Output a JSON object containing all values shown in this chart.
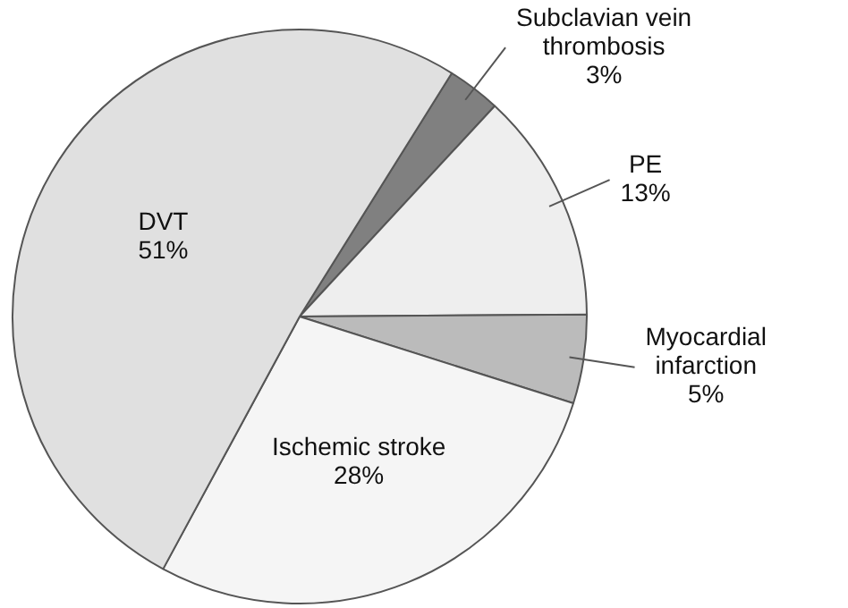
{
  "chart_data": {
    "type": "pie",
    "categories": [
      "Subclavian vein thrombosis",
      "PE",
      "Myocardial infarction",
      "Ischemic stroke",
      "DVT"
    ],
    "values": [
      3,
      13,
      5,
      28,
      51
    ],
    "value_labels": [
      "3%",
      "13%",
      "5%",
      "28%",
      "51%"
    ],
    "colors": [
      "#808080",
      "#eeeeee",
      "#bbbbbb",
      "#f5f5f5",
      "#e0e0e0"
    ],
    "legend": false
  }
}
